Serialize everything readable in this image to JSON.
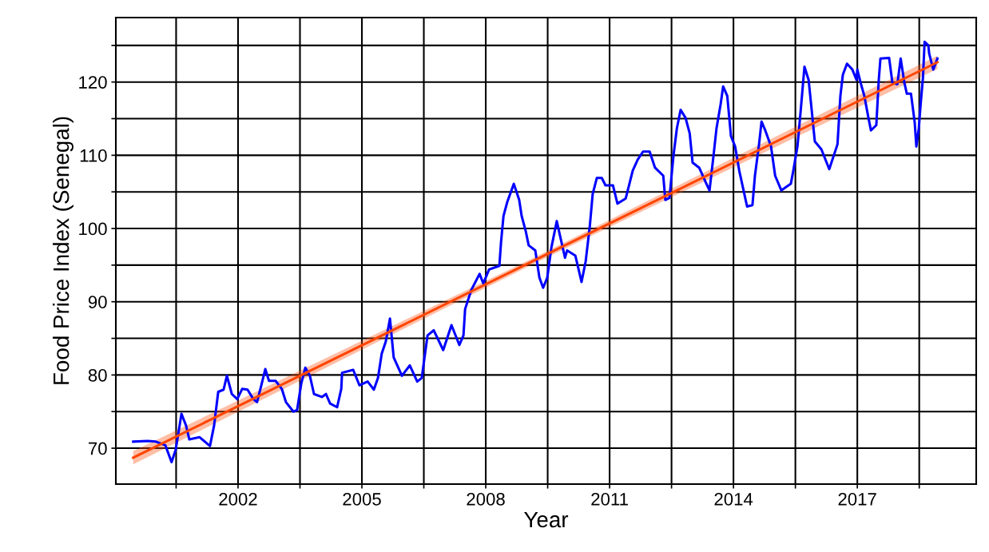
{
  "chart_data": {
    "type": "line",
    "xlabel": "Year",
    "ylabel": "Food Price Index (Senegal)",
    "xlim": [
      1999.04,
      2019.88
    ],
    "ylim": [
      65.1,
      128.8
    ],
    "xticks": [
      {
        "value": 2000.5,
        "label": null
      },
      2002,
      {
        "value": 2003.5,
        "label": null
      },
      2005,
      {
        "value": 2006.5,
        "label": null
      },
      2008,
      {
        "value": 2009.5,
        "label": null
      },
      2011,
      {
        "value": 2012.5,
        "label": null
      },
      2014,
      {
        "value": 2015.5,
        "label": null
      },
      2017,
      {
        "value": 2018.5,
        "label": null
      }
    ],
    "yticks": [
      70,
      {
        "value": 75,
        "label": null
      },
      80,
      {
        "value": 85,
        "label": null
      },
      90,
      {
        "value": 95,
        "label": null
      },
      100,
      {
        "value": 105,
        "label": null
      },
      110,
      {
        "value": 115,
        "label": null
      },
      120,
      {
        "value": 125,
        "label": null
      }
    ],
    "grid": true,
    "legend": false,
    "marker": "none",
    "line_style": "solid",
    "series": [
      {
        "color": "#0000ff",
        "x": [
          1999.46,
          1999.81,
          2000.01,
          2000.24,
          2000.39,
          2000.49,
          2000.63,
          2000.74,
          2000.82,
          2001.07,
          2001.32,
          2001.42,
          2001.52,
          2001.65,
          2001.73,
          2001.85,
          2001.98,
          2002.1,
          2002.23,
          2002.37,
          2002.46,
          2002.56,
          2002.66,
          2002.75,
          2002.91,
          2003.06,
          2003.16,
          2003.34,
          2003.43,
          2003.53,
          2003.63,
          2003.74,
          2003.84,
          2004.03,
          2004.13,
          2004.23,
          2004.4,
          2004.5,
          2004.52,
          2004.79,
          2004.94,
          2005.14,
          2005.29,
          2005.39,
          2005.48,
          2005.58,
          2005.68,
          2005.77,
          2005.97,
          2006.16,
          2006.34,
          2006.45,
          2006.59,
          2006.74,
          2006.97,
          2007.17,
          2007.36,
          2007.46,
          2007.5,
          2007.65,
          2007.85,
          2007.94,
          2008.08,
          2008.33,
          2008.37,
          2008.43,
          2008.52,
          2008.68,
          2008.81,
          2008.87,
          2008.97,
          2009.04,
          2009.2,
          2009.3,
          2009.39,
          2009.49,
          2009.59,
          2009.72,
          2009.82,
          2009.92,
          2009.97,
          2010.17,
          2010.32,
          2010.42,
          2010.52,
          2010.59,
          2010.69,
          2010.81,
          2010.9,
          2011.08,
          2011.19,
          2011.39,
          2011.48,
          2011.56,
          2011.68,
          2011.81,
          2011.97,
          2012.1,
          2012.3,
          2012.35,
          2012.45,
          2012.55,
          2012.63,
          2012.72,
          2012.84,
          2012.94,
          2013.01,
          2013.17,
          2013.32,
          2013.42,
          2013.52,
          2013.59,
          2013.69,
          2013.75,
          2013.85,
          2013.94,
          2014.04,
          2014.14,
          2014.33,
          2014.46,
          2014.52,
          2014.62,
          2014.68,
          2014.77,
          2014.91,
          2015.01,
          2015.16,
          2015.39,
          2015.45,
          2015.55,
          2015.63,
          2015.72,
          2015.82,
          2015.88,
          2015.97,
          2016.13,
          2016.32,
          2016.52,
          2016.59,
          2016.65,
          2016.75,
          2016.88,
          2016.98,
          2017.0,
          2017.08,
          2017.17,
          2017.27,
          2017.33,
          2017.46,
          2017.52,
          2017.56,
          2017.77,
          2017.85,
          2017.97,
          2018.05,
          2018.14,
          2018.2,
          2018.3,
          2018.39,
          2018.43,
          2018.49,
          2018.53,
          2018.59,
          2018.63,
          2018.72,
          2018.74,
          2018.84,
          2018.94
        ],
        "values": [
          70.9,
          71.0,
          70.9,
          70.4,
          68.1,
          69.8,
          74.7,
          73.1,
          71.2,
          71.5,
          70.3,
          73.1,
          77.7,
          78.0,
          79.9,
          77.4,
          76.7,
          78.1,
          78.0,
          76.7,
          76.3,
          78.5,
          80.8,
          79.2,
          79.2,
          78.1,
          76.3,
          75.0,
          75.2,
          78.8,
          81.0,
          79.9,
          77.4,
          77.0,
          77.4,
          76.1,
          75.6,
          78.1,
          80.3,
          80.7,
          78.6,
          79.1,
          78.0,
          79.6,
          82.9,
          84.6,
          87.7,
          82.4,
          79.9,
          81.3,
          79.1,
          79.6,
          85.4,
          86.1,
          83.4,
          86.8,
          84.1,
          85.4,
          89.0,
          91.6,
          93.8,
          92.5,
          94.4,
          94.9,
          98.1,
          101.7,
          103.6,
          106.1,
          103.9,
          101.7,
          99.6,
          97.7,
          97.0,
          93.3,
          91.9,
          93.3,
          97.4,
          101.0,
          98.5,
          96.0,
          97.0,
          96.3,
          92.7,
          95.5,
          100.3,
          104.7,
          106.9,
          106.9,
          105.9,
          105.9,
          103.4,
          104.1,
          106.1,
          107.9,
          109.4,
          110.5,
          110.5,
          108.3,
          107.2,
          103.9,
          104.2,
          110.1,
          113.7,
          116.2,
          115.1,
          113.0,
          109.0,
          108.3,
          106.4,
          105.2,
          110.1,
          113.7,
          117.0,
          119.4,
          118.1,
          112.6,
          111.2,
          107.9,
          103.0,
          103.2,
          107.2,
          111.5,
          114.6,
          113.4,
          111.2,
          107.2,
          105.2,
          106.1,
          107.9,
          111.2,
          116.2,
          122.1,
          120.3,
          117.0,
          111.9,
          110.8,
          108.1,
          111.5,
          118.1,
          121.0,
          122.5,
          121.7,
          120.3,
          121.7,
          119.9,
          118.1,
          115.1,
          113.4,
          114.1,
          120.3,
          123.2,
          123.3,
          119.9,
          119.7,
          123.2,
          119.9,
          118.4,
          118.4,
          114.5,
          111.2,
          113.7,
          116.7,
          120.6,
          125.5,
          125.0,
          123.9,
          121.7,
          123.2
        ]
      },
      {
        "color": "#ff4500",
        "x": [
          1999.46,
          2009.2,
          2018.94
        ],
        "values": [
          68.7,
          95.7,
          122.7
        ],
        "lower": [
          67.8,
          95.3,
          121.8
        ],
        "upper": [
          69.6,
          96.1,
          123.6
        ]
      }
    ]
  }
}
